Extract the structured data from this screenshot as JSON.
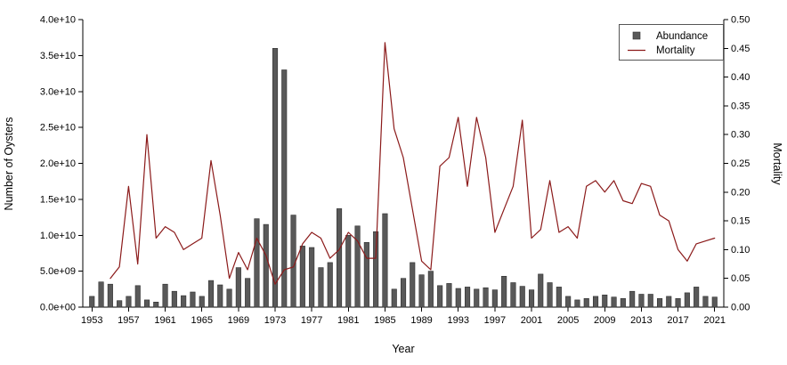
{
  "chart_data": {
    "type": "bar+line",
    "title": "",
    "xlabel": "Year",
    "ylabel_left": "Number of Oysters",
    "ylabel_right": "Mortality",
    "x_domain": [
      1952,
      2022
    ],
    "ylim_left": [
      0,
      40000000000.0
    ],
    "ylim_right": [
      0,
      0.5
    ],
    "grid": false,
    "x_ticks": [
      1953,
      1957,
      1961,
      1965,
      1969,
      1973,
      1977,
      1981,
      1985,
      1989,
      1993,
      1997,
      2001,
      2005,
      2009,
      2013,
      2017,
      2021
    ],
    "y_ticks_left": [
      "0.0e+00",
      "5.0e+09",
      "1.0e+10",
      "1.5e+10",
      "2.0e+10",
      "2.5e+10",
      "3.0e+10",
      "3.5e+10",
      "4.0e+10"
    ],
    "y_ticks_right": [
      "0.00",
      "0.05",
      "0.10",
      "0.15",
      "0.20",
      "0.25",
      "0.30",
      "0.35",
      "0.40",
      "0.45",
      "0.50"
    ],
    "series": [
      {
        "name": "Abundance",
        "type": "bar",
        "axis": "left",
        "color": "#595959",
        "edge_color": "#2f2f2f",
        "x_start": 1953,
        "values": [
          1500000000.0,
          3500000000.0,
          3200000000.0,
          900000000.0,
          1500000000.0,
          3000000000.0,
          1000000000.0,
          700000000.0,
          3200000000.0,
          2200000000.0,
          1600000000.0,
          2100000000.0,
          1500000000.0,
          3700000000.0,
          3100000000.0,
          2500000000.0,
          5500000000.0,
          4000000000.0,
          12300000000.0,
          11500000000.0,
          36000000000.0,
          33000000000.0,
          12800000000.0,
          8500000000.0,
          8300000000.0,
          5500000000.0,
          6200000000.0,
          13700000000.0,
          10000000000.0,
          11300000000.0,
          9000000000.0,
          10500000000.0,
          13000000000.0,
          2500000000.0,
          4000000000.0,
          6200000000.0,
          4500000000.0,
          5000000000.0,
          3000000000.0,
          3300000000.0,
          2600000000.0,
          2800000000.0,
          2500000000.0,
          2700000000.0,
          2400000000.0,
          4300000000.0,
          3400000000.0,
          2900000000.0,
          2400000000.0,
          4600000000.0,
          3400000000.0,
          2800000000.0,
          1500000000.0,
          1000000000.0,
          1200000000.0,
          1500000000.0,
          1700000000.0,
          1400000000.0,
          1200000000.0,
          2200000000.0,
          1800000000.0,
          1800000000.0,
          1200000000.0,
          1500000000.0,
          1200000000.0,
          2000000000.0,
          2800000000.0,
          1500000000.0,
          1400000000.0
        ]
      },
      {
        "name": "Mortality",
        "type": "line",
        "axis": "right",
        "color": "#8b1a1a",
        "x_start": 1955,
        "values": [
          0.05,
          0.07,
          0.21,
          0.075,
          0.3,
          0.12,
          0.14,
          0.13,
          0.1,
          0.11,
          0.12,
          0.255,
          0.16,
          0.05,
          0.095,
          0.065,
          0.12,
          0.09,
          0.04,
          0.065,
          0.07,
          0.11,
          0.13,
          0.12,
          0.085,
          0.1,
          0.13,
          0.115,
          0.085,
          0.085,
          0.46,
          0.31,
          0.26,
          0.17,
          0.08,
          0.065,
          0.245,
          0.26,
          0.33,
          0.21,
          0.33,
          0.26,
          0.13,
          0.17,
          0.21,
          0.325,
          0.12,
          0.135,
          0.22,
          0.13,
          0.14,
          0.12,
          0.21,
          0.22,
          0.2,
          0.22,
          0.185,
          0.18,
          0.215,
          0.21,
          0.16,
          0.15,
          0.1,
          0.08,
          0.11,
          0.115,
          0.12
        ]
      }
    ],
    "legend": {
      "position": "top-right",
      "items": [
        {
          "label": "Abundance",
          "marker": "square",
          "color": "#595959"
        },
        {
          "label": "Mortality",
          "marker": "line",
          "color": "#8b1a1a"
        }
      ]
    }
  }
}
